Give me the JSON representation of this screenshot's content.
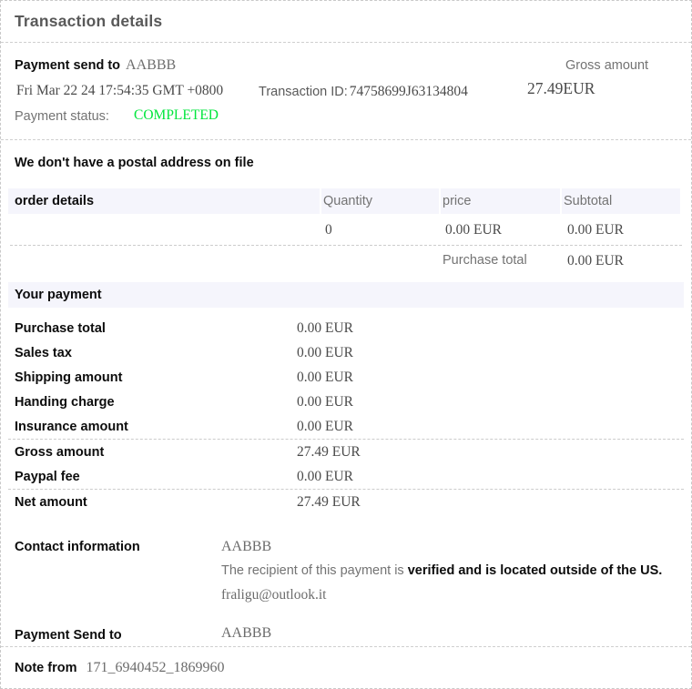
{
  "page": {
    "title": "Transaction details"
  },
  "summary": {
    "payment_send_to_label": "Payment send to",
    "payee": "AABBB",
    "gross_amount_label": "Gross amount",
    "date": "Fri Mar 22 24 17:54:35 GMT +0800",
    "transaction_id_label": "Transaction ID:",
    "transaction_id": "74758699J63134804",
    "gross_amount": "27.49EUR",
    "payment_status_label": "Payment status:",
    "payment_status": "COMPLETED"
  },
  "postal_note": "We don't have a postal address on file",
  "order": {
    "headers": {
      "title": "order details",
      "quantity": "Quantity",
      "price": "price",
      "subtotal": "Subtotal"
    },
    "row": {
      "quantity": "0",
      "price": "0.00 EUR",
      "subtotal": "0.00 EUR"
    },
    "purchase_total_label": "Purchase total",
    "purchase_total": "0.00 EUR"
  },
  "your_payment": {
    "title": "Your payment",
    "rows": [
      {
        "label": "Purchase total",
        "value": "0.00 EUR"
      },
      {
        "label": "Sales tax",
        "value": "0.00 EUR"
      },
      {
        "label": "Shipping amount",
        "value": "0.00 EUR"
      },
      {
        "label": "Handing charge",
        "value": "0.00 EUR"
      },
      {
        "label": "Insurance amount",
        "value": "0.00 EUR"
      },
      {
        "label": "Gross amount",
        "value": "27.49 EUR"
      },
      {
        "label": "Paypal fee",
        "value": "0.00 EUR"
      },
      {
        "label": "Net amount",
        "value": "27.49 EUR"
      }
    ]
  },
  "contact": {
    "label": "Contact information",
    "name": "AABBB",
    "recipient_note_prefix": "The recipient of this payment is ",
    "recipient_note_bold": "verified and is located outside of the US.",
    "email": "fraligu@outlook.it"
  },
  "payment_send_to": {
    "label": "Payment Send to",
    "name": "AABBB"
  },
  "note": {
    "label": "Note from",
    "value": "171_6940452_1869960"
  },
  "colors": {
    "status_green": "#00e63c",
    "section_bar_bg": "#f5f5fc"
  }
}
